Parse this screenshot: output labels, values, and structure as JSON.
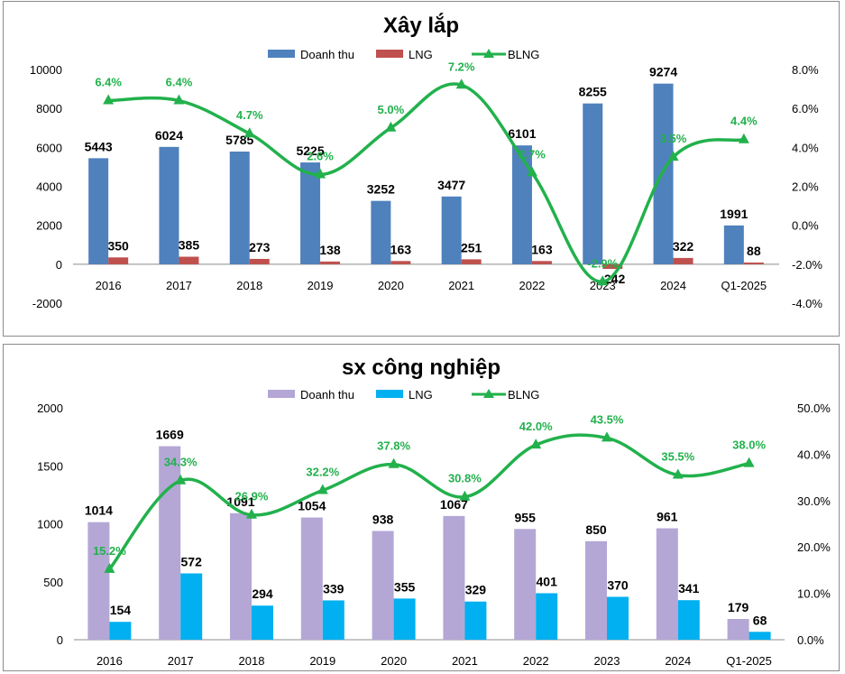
{
  "chart_data": [
    {
      "type": "bar+line",
      "title": "Xây lắp",
      "categories": [
        "2016",
        "2017",
        "2018",
        "2019",
        "2020",
        "2021",
        "2022",
        "2023",
        "2024",
        "Q1-2025"
      ],
      "series": [
        {
          "name": "Doanh thu",
          "kind": "bar",
          "axis": "left",
          "color": "#4f81bd",
          "values": [
            5443,
            6024,
            5785,
            5225,
            3252,
            3477,
            6101,
            8255,
            9274,
            1991
          ]
        },
        {
          "name": "LNG",
          "kind": "bar",
          "axis": "left",
          "color": "#c0504d",
          "values": [
            350,
            385,
            273,
            138,
            163,
            251,
            163,
            -242,
            322,
            88
          ]
        },
        {
          "name": "BLNG",
          "kind": "line",
          "axis": "right",
          "color": "#22b14c",
          "values": [
            6.4,
            6.4,
            4.7,
            2.6,
            5.0,
            7.2,
            2.7,
            -2.9,
            3.5,
            4.4
          ],
          "labels": [
            "6.4%",
            "6.4%",
            "4.7%",
            "2.6%",
            "5.0%",
            "7.2%",
            "2.7%",
            "-2.9%",
            "3.5%",
            "4.4%"
          ]
        }
      ],
      "ylim": [
        -2000,
        10000
      ],
      "yticks": [
        "-2000",
        "0",
        "2000",
        "4000",
        "6000",
        "8000",
        "10000"
      ],
      "y2lim": [
        -4,
        8
      ],
      "y2ticks": [
        "-4.0%",
        "-2.0%",
        "0.0%",
        "2.0%",
        "4.0%",
        "6.0%",
        "8.0%"
      ],
      "legend": "top-center",
      "grid": false
    },
    {
      "type": "bar+line",
      "title": "sx công nghiệp",
      "categories": [
        "2016",
        "2017",
        "2018",
        "2019",
        "2020",
        "2021",
        "2022",
        "2023",
        "2024",
        "Q1-2025"
      ],
      "series": [
        {
          "name": "Doanh thu",
          "kind": "bar",
          "axis": "left",
          "color": "#b4a7d6",
          "values": [
            1014,
            1669,
            1091,
            1054,
            938,
            1067,
            955,
            850,
            961,
            179
          ]
        },
        {
          "name": "LNG",
          "kind": "bar",
          "axis": "left",
          "color": "#00b0f0",
          "values": [
            154,
            572,
            294,
            339,
            355,
            329,
            401,
            370,
            341,
            68
          ]
        },
        {
          "name": "BLNG",
          "kind": "line",
          "axis": "right",
          "color": "#22b14c",
          "values": [
            15.2,
            34.3,
            26.9,
            32.2,
            37.8,
            30.8,
            42.0,
            43.5,
            35.5,
            38.0
          ],
          "labels": [
            "15.2%",
            "34.3%",
            "26.9%",
            "32.2%",
            "37.8%",
            "30.8%",
            "42.0%",
            "43.5%",
            "35.5%",
            "38.0%"
          ]
        }
      ],
      "ylim": [
        0,
        2000
      ],
      "yticks": [
        "0",
        "500",
        "1000",
        "1500",
        "2000"
      ],
      "y2lim": [
        0,
        50
      ],
      "y2ticks": [
        "0.0%",
        "10.0%",
        "20.0%",
        "30.0%",
        "40.0%",
        "50.0%"
      ],
      "legend": "top-center",
      "grid": false
    }
  ]
}
